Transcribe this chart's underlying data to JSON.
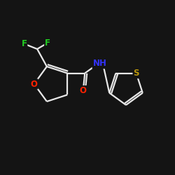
{
  "background_color": "#141414",
  "bond_color": "#e8e8e8",
  "atom_colors": {
    "F": "#22cc22",
    "O": "#ff2200",
    "N": "#3333ff",
    "S": "#b8960c",
    "H": "#e8e8e8"
  },
  "figsize": [
    2.5,
    2.5
  ],
  "dpi": 100,
  "lw": 1.6,
  "fontsize": 8.5
}
